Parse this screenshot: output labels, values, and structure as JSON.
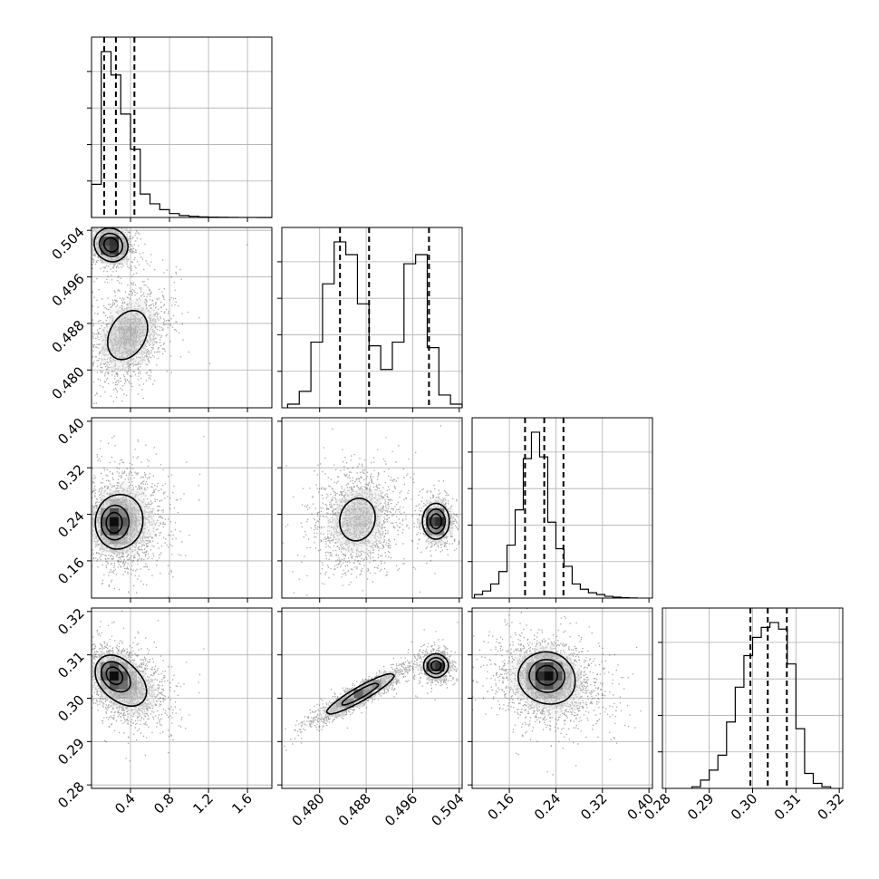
{
  "chart_data": {
    "type": "corner",
    "grid": true,
    "params": [
      {
        "range": [
          0.0,
          1.85
        ],
        "ticks": [
          0.4,
          0.8,
          1.2,
          1.6
        ],
        "tick_labels": [
          "0.4",
          "0.8",
          "1.2",
          "1.6"
        ],
        "hist": {
          "edges": [
            0.0,
            0.1,
            0.2,
            0.3,
            0.4,
            0.5,
            0.6,
            0.7,
            0.8,
            0.9,
            1.0,
            1.1,
            1.2,
            1.3,
            1.4,
            1.5,
            1.6,
            1.7,
            1.8,
            1.85
          ],
          "counts": [
            0.17,
            0.85,
            0.73,
            0.53,
            0.35,
            0.12,
            0.07,
            0.04,
            0.02,
            0.01,
            0.006,
            0.003,
            0.002,
            0.001,
            0.0005,
            0.0003,
            0.0002,
            0.0001,
            0.0
          ]
        },
        "quantiles": [
          0.13,
          0.25,
          0.44
        ]
      },
      {
        "range": [
          0.4735,
          0.5045
        ],
        "ticks": [
          0.48,
          0.488,
          0.496,
          0.504
        ],
        "tick_labels": [
          "0.480",
          "0.488",
          "0.496",
          "0.504"
        ],
        "hist": {
          "edges": [
            0.4745,
            0.4765,
            0.4785,
            0.4805,
            0.4825,
            0.4845,
            0.4865,
            0.4885,
            0.4905,
            0.4925,
            0.4945,
            0.4965,
            0.4985,
            0.5005,
            0.5025,
            0.5045
          ],
          "counts": [
            0.02,
            0.09,
            0.36,
            0.68,
            0.91,
            0.84,
            0.57,
            0.34,
            0.21,
            0.36,
            0.79,
            0.84,
            0.33,
            0.07,
            0.02
          ]
        },
        "quantiles": [
          0.4835,
          0.4885,
          0.4988
        ]
      },
      {
        "range": [
          0.096,
          0.406
        ],
        "ticks": [
          0.16,
          0.24,
          0.32,
          0.4
        ],
        "tick_labels": [
          "0.16",
          "0.24",
          "0.32",
          "0.40"
        ],
        "hist": {
          "edges": [
            0.1,
            0.114,
            0.128,
            0.142,
            0.156,
            0.17,
            0.184,
            0.198,
            0.212,
            0.226,
            0.24,
            0.254,
            0.268,
            0.282,
            0.296,
            0.31,
            0.324,
            0.338,
            0.352,
            0.366,
            0.38
          ],
          "counts": [
            0.02,
            0.04,
            0.08,
            0.15,
            0.3,
            0.5,
            0.79,
            0.94,
            0.8,
            0.43,
            0.28,
            0.18,
            0.08,
            0.05,
            0.03,
            0.02,
            0.01,
            0.005,
            0.002,
            0.001
          ]
        },
        "quantiles": [
          0.187,
          0.22,
          0.253
        ]
      },
      {
        "range": [
          0.2792,
          0.3208
        ],
        "ticks": [
          0.28,
          0.29,
          0.3,
          0.31,
          0.32
        ],
        "tick_labels": [
          "0.28",
          "0.29",
          "0.30",
          "0.31",
          "0.32"
        ],
        "hist": {
          "edges": [
            0.286,
            0.288,
            0.29,
            0.292,
            0.294,
            0.296,
            0.298,
            0.3,
            0.302,
            0.304,
            0.306,
            0.308,
            0.31,
            0.312,
            0.314,
            0.316,
            0.318
          ],
          "counts": [
            0.01,
            0.05,
            0.11,
            0.2,
            0.4,
            0.61,
            0.8,
            0.91,
            0.97,
            1.0,
            0.96,
            0.75,
            0.36,
            0.09,
            0.03,
            0.01
          ]
        },
        "quantiles": [
          0.2995,
          0.3035,
          0.3079
        ]
      }
    ],
    "pairs": [
      {
        "row": 1,
        "col": 0,
        "modes": [
          {
            "mx": 0.2,
            "my": 0.5015,
            "sx": 0.09,
            "sy": 0.0015,
            "rho": -0.1,
            "w": 0.42
          },
          {
            "mx": 0.37,
            "my": 0.486,
            "sx": 0.17,
            "sy": 0.0035,
            "rho": 0.3,
            "w": 0.58
          }
        ]
      },
      {
        "row": 2,
        "col": 0,
        "modes": [
          {
            "mx": 0.22,
            "my": 0.225,
            "sx": 0.09,
            "sy": 0.02,
            "rho": 0.0,
            "w": 0.45
          },
          {
            "mx": 0.35,
            "my": 0.23,
            "sx": 0.17,
            "sy": 0.038,
            "rho": 0.0,
            "w": 0.55
          }
        ]
      },
      {
        "row": 2,
        "col": 1,
        "modes": [
          {
            "mx": 0.4865,
            "my": 0.231,
            "sx": 0.003,
            "sy": 0.036,
            "rho": 0.1,
            "w": 0.6
          },
          {
            "mx": 0.5,
            "my": 0.228,
            "sx": 0.0012,
            "sy": 0.016,
            "rho": 0.0,
            "w": 0.4
          }
        ]
      },
      {
        "row": 3,
        "col": 0,
        "modes": [
          {
            "mx": 0.22,
            "my": 0.3055,
            "sx": 0.09,
            "sy": 0.0022,
            "rho": -0.2,
            "w": 0.4
          },
          {
            "mx": 0.35,
            "my": 0.303,
            "sx": 0.17,
            "sy": 0.0038,
            "rho": -0.3,
            "w": 0.6
          }
        ]
      },
      {
        "row": 3,
        "col": 1,
        "modes": [
          {
            "mx": 0.487,
            "my": 0.301,
            "sx": 0.0035,
            "sy": 0.0028,
            "rho": 0.92,
            "w": 0.62
          },
          {
            "mx": 0.5,
            "my": 0.3075,
            "sx": 0.0011,
            "sy": 0.0014,
            "rho": 0.0,
            "w": 0.38
          }
        ]
      },
      {
        "row": 3,
        "col": 2,
        "modes": [
          {
            "mx": 0.225,
            "my": 0.3055,
            "sx": 0.02,
            "sy": 0.0025,
            "rho": 0.0,
            "w": 0.45
          },
          {
            "mx": 0.225,
            "my": 0.3035,
            "sx": 0.042,
            "sy": 0.0045,
            "rho": -0.2,
            "w": 0.55
          }
        ]
      }
    ]
  }
}
